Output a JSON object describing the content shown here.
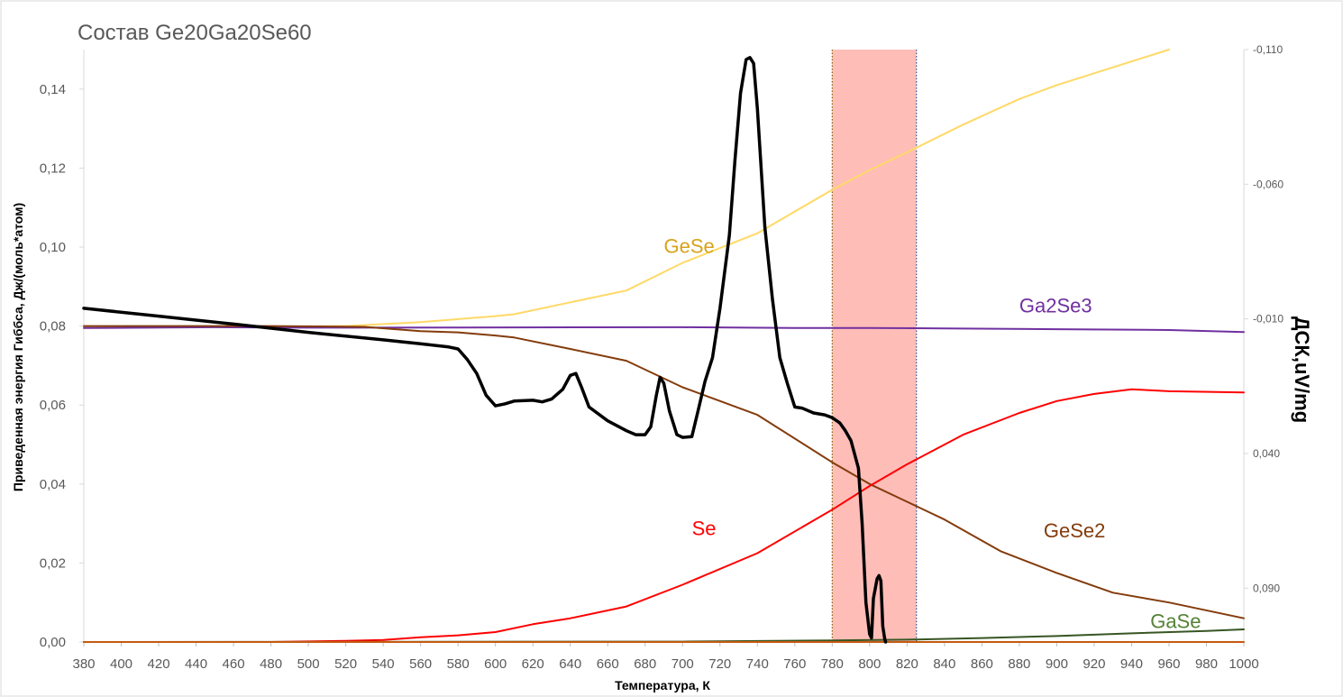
{
  "chart_data": {
    "type": "line",
    "title": "Состав Ge20Ga20Se60",
    "xlabel": "Температура, К",
    "ylabel": "Приведенная энергия Гиббса, Дж/(моль*атом)",
    "y2label": "ДСК,uV/mg",
    "xlim": [
      380,
      1000
    ],
    "ylim": [
      0,
      0.15
    ],
    "y2lim": [
      -0.11,
      0.11
    ],
    "y2_inverted": true,
    "x_ticks": [
      "380",
      "400",
      "420",
      "440",
      "460",
      "480",
      "500",
      "520",
      "540",
      "560",
      "580",
      "600",
      "620",
      "640",
      "660",
      "680",
      "700",
      "720",
      "740",
      "760",
      "780",
      "800",
      "820",
      "840",
      "860",
      "880",
      "900",
      "920",
      "940",
      "960",
      "980",
      "1000"
    ],
    "y_ticks": [
      "0,00",
      "0,02",
      "0,04",
      "0,06",
      "0,08",
      "0,10",
      "0,12",
      "0,14"
    ],
    "y2_ticks": [
      "-0,110",
      "-0,060",
      "-0,010",
      "0,040",
      "0,090"
    ],
    "grid": false,
    "highlight_region": {
      "x_range": [
        780,
        825
      ],
      "color": "#ffbdb8"
    },
    "series": [
      {
        "name": "GeSe",
        "axis": "left",
        "color": "#ffd966",
        "label_color": "#d9a21b",
        "x": [
          380,
          460,
          520,
          560,
          600,
          610,
          640,
          670,
          700,
          740,
          780,
          800,
          820,
          850,
          880,
          900,
          930,
          960
        ],
        "y": [
          0.0795,
          0.0798,
          0.08,
          0.081,
          0.0825,
          0.083,
          0.086,
          0.089,
          0.096,
          0.1035,
          0.1145,
          0.1195,
          0.124,
          0.131,
          0.1375,
          0.141,
          0.1455,
          0.15
        ]
      },
      {
        "name": "Ga2Se3",
        "axis": "left",
        "color": "#7030a0",
        "label_color": "#7030a0",
        "x": [
          380,
          450,
          500,
          700,
          760,
          800,
          840,
          900,
          960,
          1000
        ],
        "y": [
          0.0795,
          0.0797,
          0.0796,
          0.0797,
          0.0795,
          0.0795,
          0.0794,
          0.0792,
          0.079,
          0.0785
        ]
      },
      {
        "name": "GeSe2",
        "axis": "left",
        "color": "#843c0c",
        "label_color": "#843c0c",
        "x": [
          380,
          480,
          530,
          560,
          580,
          600,
          610,
          640,
          670,
          700,
          740,
          780,
          800,
          820,
          840,
          870,
          900,
          930,
          960,
          1000
        ],
        "y": [
          0.08,
          0.08,
          0.0798,
          0.0787,
          0.0784,
          0.0776,
          0.0771,
          0.0742,
          0.0712,
          0.0645,
          0.0575,
          0.0455,
          0.04,
          0.0355,
          0.031,
          0.023,
          0.0175,
          0.0125,
          0.01,
          0.006
        ]
      },
      {
        "name": "Se",
        "axis": "left",
        "color": "#ff0000",
        "label_color": "#ff0000",
        "x": [
          380,
          480,
          520,
          540,
          560,
          580,
          600,
          620,
          640,
          670,
          700,
          740,
          780,
          800,
          820,
          850,
          880,
          900,
          920,
          940,
          960,
          1000
        ],
        "y": [
          0.0,
          0.0,
          0.0003,
          0.0005,
          0.0012,
          0.0017,
          0.0025,
          0.0045,
          0.006,
          0.009,
          0.0145,
          0.0225,
          0.0335,
          0.0395,
          0.045,
          0.0525,
          0.058,
          0.061,
          0.0628,
          0.064,
          0.0635,
          0.0632
        ]
      },
      {
        "name": "GaSe",
        "axis": "left",
        "color": "#375623",
        "label_color": "#548235",
        "x": [
          380,
          700,
          780,
          820,
          860,
          900,
          940,
          980,
          1000
        ],
        "y": [
          0.0,
          0.0001,
          0.0004,
          0.0006,
          0.001,
          0.0015,
          0.0022,
          0.0028,
          0.0032
        ]
      },
      {
        "name": "",
        "axis": "left",
        "color": "#c55a11",
        "label_color": "#c55a11",
        "x": [
          380,
          1000
        ],
        "y": [
          0.0,
          0.0
        ]
      },
      {
        "name": "",
        "axis": "left",
        "color": "#000000",
        "label_color": "#000000",
        "stroke_width": 3.5,
        "x": [
          380,
          420,
          460,
          500,
          540,
          560,
          575,
          580,
          585,
          590,
          595,
          600,
          605,
          610,
          620,
          625,
          630,
          636,
          640,
          643,
          646,
          650,
          660,
          670,
          675,
          680,
          683,
          686,
          688,
          690,
          693,
          697,
          700,
          705,
          708,
          712,
          716,
          720,
          725,
          728,
          731,
          734,
          736,
          738,
          740,
          744,
          748,
          752,
          756,
          760,
          764,
          770,
          776,
          780,
          784,
          787,
          790,
          794,
          796,
          798,
          800,
          801,
          802,
          804,
          805,
          806,
          807,
          808,
          808.5
        ],
        "y": [
          0.0845,
          0.0825,
          0.0805,
          0.0784,
          0.0765,
          0.0755,
          0.0747,
          0.0742,
          0.0715,
          0.068,
          0.0625,
          0.0598,
          0.0603,
          0.061,
          0.0612,
          0.0608,
          0.0615,
          0.064,
          0.0675,
          0.068,
          0.0645,
          0.0595,
          0.056,
          0.0535,
          0.0525,
          0.0525,
          0.0545,
          0.0625,
          0.067,
          0.0655,
          0.0585,
          0.0525,
          0.0518,
          0.052,
          0.058,
          0.066,
          0.072,
          0.0845,
          0.103,
          0.122,
          0.139,
          0.1475,
          0.148,
          0.1465,
          0.135,
          0.105,
          0.087,
          0.072,
          0.0655,
          0.0595,
          0.0592,
          0.058,
          0.0575,
          0.0568,
          0.0555,
          0.0535,
          0.051,
          0.044,
          0.03,
          0.01,
          0.002,
          0.001,
          0.011,
          0.016,
          0.0168,
          0.0155,
          0.004,
          0.001,
          0.0
        ]
      }
    ],
    "annotations": [
      {
        "text": "GeSe",
        "x": 690,
        "y": 0.0985,
        "series": "GeSe"
      },
      {
        "text": "Ga2Se3",
        "x": 880,
        "y": 0.0835,
        "series": "Ga2Se3"
      },
      {
        "text": "Se",
        "x": 705,
        "y": 0.027,
        "series": "Se"
      },
      {
        "text": "GeSe2",
        "x": 893,
        "y": 0.0265,
        "series": "GeSe2"
      },
      {
        "text": "GaSe",
        "x": 950,
        "y": 0.0035,
        "series": "GaSe"
      }
    ]
  }
}
